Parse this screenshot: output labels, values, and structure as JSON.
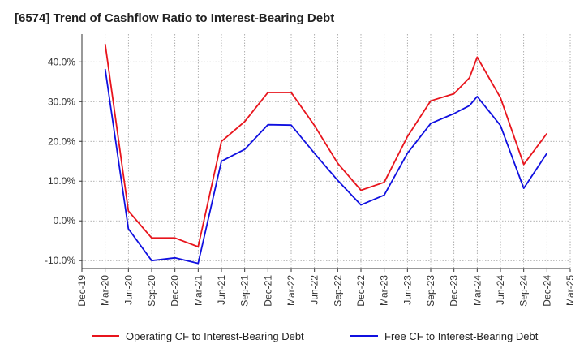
{
  "chart_data": {
    "type": "line",
    "title": "[6574]  Trend of Cashflow Ratio to Interest-Bearing Debt",
    "x_ticks": [
      "Dec-19",
      "Mar-20",
      "Jun-20",
      "Sep-20",
      "Dec-20",
      "Mar-21",
      "Jun-21",
      "Sep-21",
      "Dec-21",
      "Mar-22",
      "Jun-22",
      "Sep-22",
      "Dec-22",
      "Mar-23",
      "Jun-23",
      "Sep-23",
      "Dec-23",
      "Mar-24",
      "Jun-24",
      "Sep-24",
      "Dec-24",
      "Mar-25"
    ],
    "y_ticks": [
      "40.0%",
      "30.0%",
      "20.0%",
      "10.0%",
      "0.0%",
      "-10.0%"
    ],
    "y_tick_values": [
      40,
      30,
      20,
      10,
      0,
      -10
    ],
    "ylim": [
      -12,
      47
    ],
    "grid": true,
    "legend_position": "bottom",
    "series": [
      {
        "name": "Operating CF to Interest-Bearing Debt",
        "color": "#e8141c",
        "points": [
          [
            "Mar-20",
            44.5
          ],
          [
            "Jun-20",
            2.5
          ],
          [
            "Sep-20",
            -4.3
          ],
          [
            "Dec-20",
            -4.3
          ],
          [
            "Mar-21",
            -6.5
          ],
          [
            "Jun-21",
            20.0
          ],
          [
            "Sep-21",
            25.0
          ],
          [
            "Dec-21",
            32.3
          ],
          [
            "Mar-22",
            32.3
          ],
          [
            "Jun-22",
            24.0
          ],
          [
            "Sep-22",
            14.5
          ],
          [
            "Dec-22",
            7.7
          ],
          [
            "Mar-23",
            9.7
          ],
          [
            "Jun-23",
            21.2
          ],
          [
            "Sep-23",
            30.2
          ],
          [
            "Dec-23",
            32.0
          ],
          [
            "Feb-24",
            36.0
          ],
          [
            "Mar-24",
            41.2
          ],
          [
            "Jun-24",
            31.0
          ],
          [
            "Sep-24",
            14.2
          ],
          [
            "Dec-24",
            22.0
          ]
        ]
      },
      {
        "name": "Free CF to Interest-Bearing Debt",
        "color": "#1010e0",
        "points": [
          [
            "Mar-20",
            38.2
          ],
          [
            "Jun-20",
            -2.0
          ],
          [
            "Sep-20",
            -10.0
          ],
          [
            "Dec-20",
            -9.3
          ],
          [
            "Mar-21",
            -10.7
          ],
          [
            "Jun-21",
            15.0
          ],
          [
            "Sep-21",
            18.0
          ],
          [
            "Dec-21",
            24.2
          ],
          [
            "Mar-22",
            24.1
          ],
          [
            "Jun-22",
            17.0
          ],
          [
            "Sep-22",
            10.2
          ],
          [
            "Dec-22",
            4.0
          ],
          [
            "Mar-23",
            6.5
          ],
          [
            "Jun-23",
            17.0
          ],
          [
            "Sep-23",
            24.5
          ],
          [
            "Dec-23",
            27.0
          ],
          [
            "Feb-24",
            29.0
          ],
          [
            "Mar-24",
            31.3
          ],
          [
            "Jun-24",
            24.0
          ],
          [
            "Sep-24",
            8.2
          ],
          [
            "Dec-24",
            17.0
          ]
        ]
      }
    ]
  }
}
